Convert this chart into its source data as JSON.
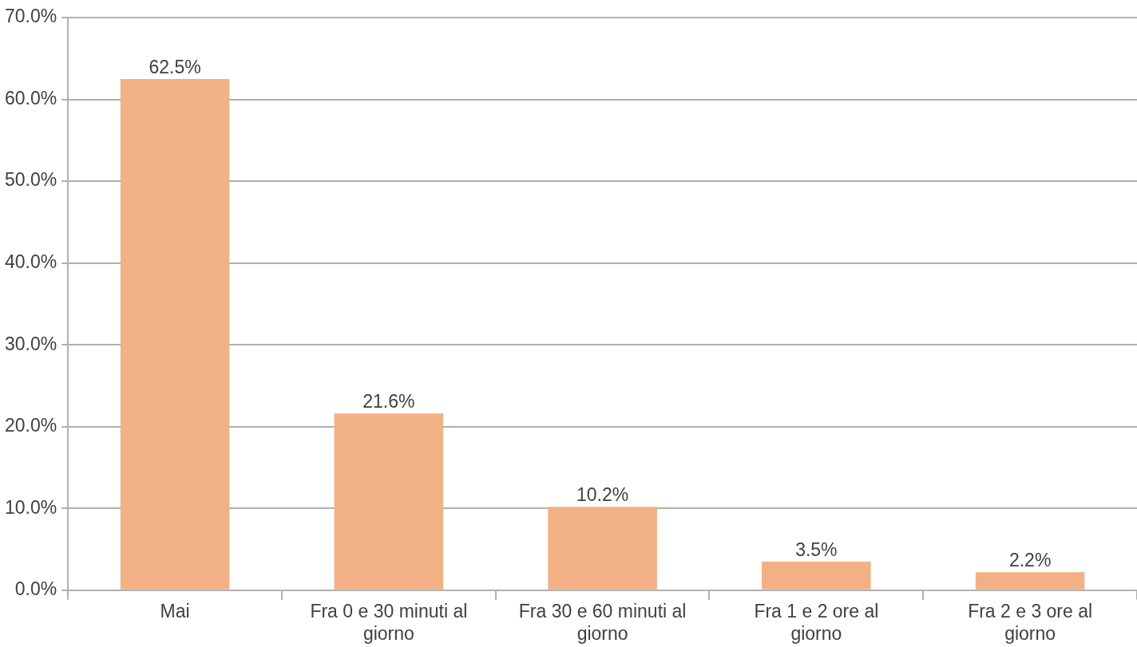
{
  "chart_data": {
    "type": "bar",
    "categories": [
      "Mai",
      "Fra 0 e 30 minuti al giorno",
      "Fra 30 e 60 minuti al giorno",
      "Fra 1 e 2 ore al giorno",
      "Fra 2 e 3 ore al giorno"
    ],
    "values": [
      62.5,
      21.6,
      10.2,
      3.5,
      2.2
    ],
    "value_labels": [
      "62.5%",
      "21.6%",
      "10.2%",
      "3.5%",
      "2.2%"
    ],
    "color": "#f2b184",
    "ylim": [
      0,
      70
    ],
    "yticks": [
      {
        "value": 0,
        "label": "0.0%"
      },
      {
        "value": 10,
        "label": "10.0%"
      },
      {
        "value": 20,
        "label": "20.0%"
      },
      {
        "value": 30,
        "label": "30.0%"
      },
      {
        "value": 40,
        "label": "40.0%"
      },
      {
        "value": 50,
        "label": "50.0%"
      },
      {
        "value": 60,
        "label": "60.0%"
      },
      {
        "value": 70,
        "label": "70.0%"
      }
    ],
    "grid": "y",
    "legend": false
  }
}
